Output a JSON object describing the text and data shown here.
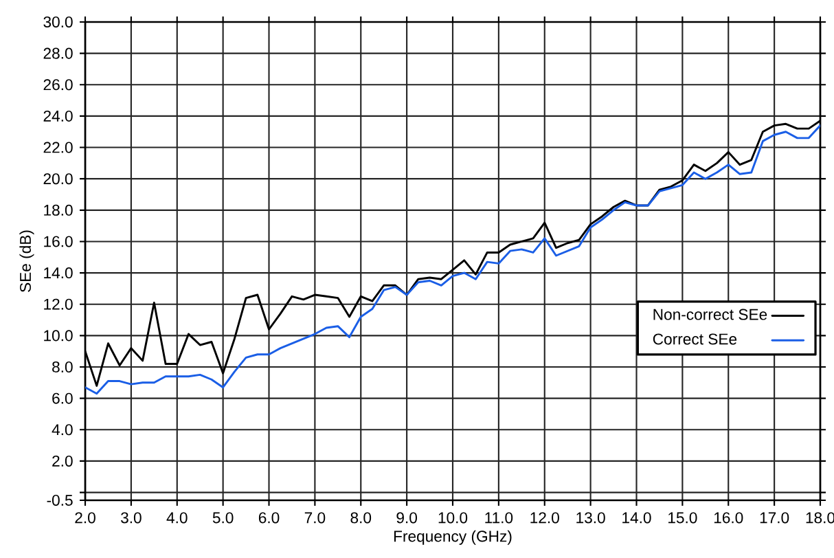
{
  "chart_data": {
    "type": "line",
    "xlabel": "Frequency (GHz)",
    "ylabel": "SEe (dB)",
    "x": [
      2.0,
      2.25,
      2.5,
      2.75,
      3.0,
      3.25,
      3.5,
      3.75,
      4.0,
      4.25,
      4.5,
      4.75,
      5.0,
      5.25,
      5.5,
      5.75,
      6.0,
      6.25,
      6.5,
      6.75,
      7.0,
      7.25,
      7.5,
      7.75,
      8.0,
      8.25,
      8.5,
      8.75,
      9.0,
      9.25,
      9.5,
      9.75,
      10.0,
      10.25,
      10.5,
      10.75,
      11.0,
      11.25,
      11.5,
      11.75,
      12.0,
      12.25,
      12.5,
      12.75,
      13.0,
      13.25,
      13.5,
      13.75,
      14.0,
      14.25,
      14.5,
      14.75,
      15.0,
      15.25,
      15.5,
      15.75,
      16.0,
      16.25,
      16.5,
      16.75,
      17.0,
      17.25,
      17.5,
      17.75,
      18.0
    ],
    "series": [
      {
        "name": "Non-correct SEe",
        "color": "#000000",
        "values": [
          9.0,
          6.8,
          9.5,
          8.1,
          9.2,
          8.4,
          12.1,
          8.2,
          8.2,
          10.1,
          9.4,
          9.6,
          7.6,
          9.8,
          12.4,
          12.6,
          10.4,
          11.4,
          12.5,
          12.3,
          12.6,
          12.5,
          12.4,
          11.2,
          12.5,
          12.2,
          13.2,
          13.2,
          12.6,
          13.6,
          13.7,
          13.6,
          14.2,
          14.8,
          13.9,
          15.3,
          15.3,
          15.8,
          16.0,
          16.2,
          17.2,
          15.6,
          15.9,
          16.1,
          17.1,
          17.6,
          18.2,
          18.6,
          18.3,
          18.3,
          19.3,
          19.5,
          19.9,
          20.9,
          20.5,
          21.0,
          21.7,
          20.9,
          21.2,
          23.0,
          23.4,
          23.5,
          23.2,
          23.2,
          23.7
        ]
      },
      {
        "name": "Correct SEe",
        "color": "#1a5ee6",
        "values": [
          6.7,
          6.3,
          7.1,
          7.1,
          6.9,
          7.0,
          7.0,
          7.4,
          7.4,
          7.4,
          7.5,
          7.2,
          6.7,
          7.7,
          8.6,
          8.8,
          8.8,
          9.2,
          9.5,
          9.8,
          10.1,
          10.5,
          10.6,
          9.9,
          11.2,
          11.7,
          12.9,
          13.1,
          12.6,
          13.4,
          13.5,
          13.2,
          13.8,
          14.0,
          13.6,
          14.7,
          14.6,
          15.4,
          15.5,
          15.3,
          16.2,
          15.1,
          15.4,
          15.7,
          16.9,
          17.4,
          18.0,
          18.5,
          18.3,
          18.3,
          19.2,
          19.4,
          19.6,
          20.4,
          20.0,
          20.4,
          20.9,
          20.3,
          20.4,
          22.4,
          22.8,
          23.0,
          22.6,
          22.6,
          23.4
        ]
      }
    ],
    "xlim": [
      2.0,
      18.0
    ],
    "ylim": [
      -0.5,
      30.0
    ],
    "xticks": [
      {
        "value": 2,
        "label": "2.0"
      },
      {
        "value": 3,
        "label": "3.0"
      },
      {
        "value": 4,
        "label": "4.0"
      },
      {
        "value": 5,
        "label": "5.0"
      },
      {
        "value": 6,
        "label": "6.0"
      },
      {
        "value": 7,
        "label": "7.0"
      },
      {
        "value": 8,
        "label": "8.0"
      },
      {
        "value": 9,
        "label": "9.0"
      },
      {
        "value": 10,
        "label": "10.0"
      },
      {
        "value": 11,
        "label": "11.0"
      },
      {
        "value": 12,
        "label": "12.0"
      },
      {
        "value": 13,
        "label": "13.0"
      },
      {
        "value": 14,
        "label": "14.0"
      },
      {
        "value": 15,
        "label": "15.0"
      },
      {
        "value": 16,
        "label": "16.0"
      },
      {
        "value": 17,
        "label": "17.0"
      },
      {
        "value": 18,
        "label": "18.0"
      }
    ],
    "yticks": [
      {
        "value": -0.5,
        "label": "-0.5"
      },
      {
        "value": 0,
        "label": null
      },
      {
        "value": 2,
        "label": "2.0"
      },
      {
        "value": 4,
        "label": "4.0"
      },
      {
        "value": 6,
        "label": "6.0"
      },
      {
        "value": 8,
        "label": "8.0"
      },
      {
        "value": 10,
        "label": "10.0"
      },
      {
        "value": 12,
        "label": "12.0"
      },
      {
        "value": 14,
        "label": "14.0"
      },
      {
        "value": 16,
        "label": "16.0"
      },
      {
        "value": 18,
        "label": "18.0"
      },
      {
        "value": 20,
        "label": "20.0"
      },
      {
        "value": 22,
        "label": "22.0"
      },
      {
        "value": 24,
        "label": "24.0"
      },
      {
        "value": 26,
        "label": "26.0"
      },
      {
        "value": 28,
        "label": "28.0"
      },
      {
        "value": 30,
        "label": "30.0"
      }
    ],
    "grid": true,
    "legend": "right"
  }
}
